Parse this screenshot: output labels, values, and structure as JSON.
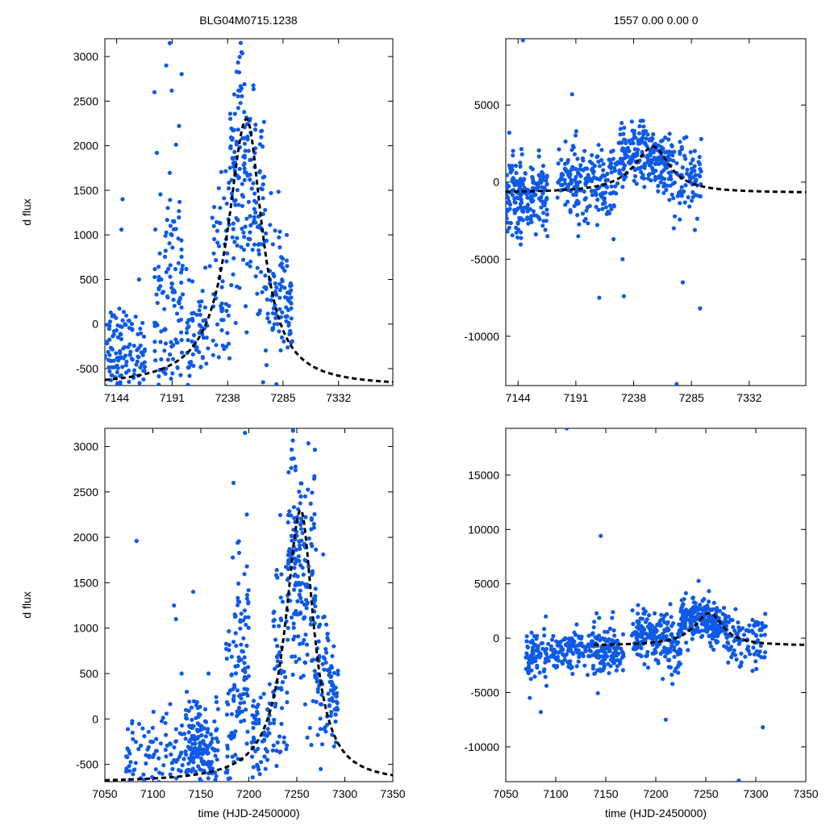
{
  "figure": {
    "title_left": "BLG04M0715.1238",
    "title_right": "1557  0.00  0.00  0",
    "colors": {
      "points": "#0f5ae6",
      "model": "#000000",
      "frame": "#000000"
    }
  },
  "chart_data": [
    {
      "id": "top-left",
      "type": "scatter",
      "ylabel": "d flux",
      "xlabel": "",
      "xlim": [
        7134,
        7378
      ],
      "ylim": [
        -690,
        3200
      ],
      "xticks": [
        7144,
        7191,
        7238,
        7285,
        7332
      ],
      "yticks": [
        -500,
        0,
        500,
        1000,
        1500,
        2000,
        2500,
        3000
      ],
      "model": {
        "t0": 7254,
        "peak": 2300,
        "base": -700,
        "tE_rise": 19,
        "tE_fall": 16
      },
      "clusters": [
        {
          "t_start": 7134,
          "t_end": 7150,
          "n": 70,
          "mean": -280,
          "sd": 250
        },
        {
          "t_start": 7150,
          "t_end": 7168,
          "n": 55,
          "mean": -330,
          "sd": 220
        },
        {
          "t_start": 7176,
          "t_end": 7188,
          "n": 55,
          "mean": 150,
          "sd": 600
        },
        {
          "t_start": 7188,
          "t_end": 7200,
          "n": 70,
          "mean": 500,
          "sd": 800
        },
        {
          "t_start": 7203,
          "t_end": 7222,
          "n": 60,
          "mean": -200,
          "sd": 300
        },
        {
          "t_start": 7225,
          "t_end": 7240,
          "n": 60,
          "mean": 500,
          "sd": 700
        },
        {
          "t_start": 7240,
          "t_end": 7255,
          "n": 110,
          "mean": 1700,
          "sd": 700
        },
        {
          "t_start": 7255,
          "t_end": 7270,
          "n": 80,
          "mean": 1200,
          "sd": 700
        },
        {
          "t_start": 7270,
          "t_end": 7283,
          "n": 50,
          "mean": 400,
          "sd": 450
        },
        {
          "t_start": 7283,
          "t_end": 7293,
          "n": 45,
          "mean": 250,
          "sd": 300
        }
      ],
      "outliers": [
        {
          "t": 7149,
          "flux": 1400
        },
        {
          "t": 7148,
          "flux": 1060
        },
        {
          "t": 7176,
          "flux": 2600
        },
        {
          "t": 7186,
          "flux": 2900
        },
        {
          "t": 7189,
          "flux": 3150
        },
        {
          "t": 7178,
          "flux": 1920
        },
        {
          "t": 7163,
          "flux": 500
        },
        {
          "t": 7223,
          "flux": 650
        }
      ]
    },
    {
      "id": "top-right",
      "type": "scatter",
      "ylabel": "",
      "xlabel": "",
      "xlim": [
        7134,
        7378
      ],
      "ylim": [
        -13200,
        9300
      ],
      "xticks": [
        7144,
        7191,
        7238,
        7285,
        7332
      ],
      "yticks": [
        -10000,
        -5000,
        0,
        5000
      ],
      "model": {
        "t0": 7254,
        "peak": 2300,
        "base": -700,
        "tE_rise": 19,
        "tE_fall": 16
      },
      "clusters": [
        {
          "t_start": 7134,
          "t_end": 7150,
          "n": 110,
          "mean": -900,
          "sd": 1300
        },
        {
          "t_start": 7150,
          "t_end": 7168,
          "n": 90,
          "mean": -1000,
          "sd": 1200
        },
        {
          "t_start": 7176,
          "t_end": 7200,
          "n": 100,
          "mean": 200,
          "sd": 1300
        },
        {
          "t_start": 7200,
          "t_end": 7225,
          "n": 100,
          "mean": -300,
          "sd": 1300
        },
        {
          "t_start": 7225,
          "t_end": 7255,
          "n": 150,
          "mean": 1700,
          "sd": 1000
        },
        {
          "t_start": 7255,
          "t_end": 7270,
          "n": 80,
          "mean": 1200,
          "sd": 900
        },
        {
          "t_start": 7270,
          "t_end": 7293,
          "n": 80,
          "mean": 0,
          "sd": 1300
        }
      ],
      "outliers": [
        {
          "t": 7148,
          "flux": 9200
        },
        {
          "t": 7188,
          "flux": 5700
        },
        {
          "t": 7210,
          "flux": -7500
        },
        {
          "t": 7230,
          "flux": -7400
        },
        {
          "t": 7273,
          "flux": -13100
        },
        {
          "t": 7292,
          "flux": -8200
        },
        {
          "t": 7278,
          "flux": -6500
        },
        {
          "t": 7229,
          "flux": -5000
        }
      ]
    },
    {
      "id": "bottom-left",
      "type": "scatter",
      "ylabel": "d flux",
      "xlabel": "time (HJD-2450000)",
      "xlim": [
        7050,
        7350
      ],
      "ylim": [
        -690,
        3200
      ],
      "xticks": [
        7050,
        7100,
        7150,
        7200,
        7250,
        7300,
        7350
      ],
      "yticks": [
        -500,
        0,
        500,
        1000,
        1500,
        2000,
        2500,
        3000
      ],
      "model": {
        "t0": 7254,
        "peak": 2300,
        "base": -700,
        "tE_rise": 19,
        "tE_fall": 16
      },
      "clusters": [
        {
          "t_start": 7072,
          "t_end": 7100,
          "n": 50,
          "mean": -450,
          "sd": 250
        },
        {
          "t_start": 7100,
          "t_end": 7134,
          "n": 60,
          "mean": -420,
          "sd": 280
        },
        {
          "t_start": 7134,
          "t_end": 7150,
          "n": 90,
          "mean": -280,
          "sd": 250
        },
        {
          "t_start": 7150,
          "t_end": 7168,
          "n": 70,
          "mean": -330,
          "sd": 220
        },
        {
          "t_start": 7176,
          "t_end": 7188,
          "n": 55,
          "mean": 150,
          "sd": 600
        },
        {
          "t_start": 7188,
          "t_end": 7200,
          "n": 70,
          "mean": 500,
          "sd": 800
        },
        {
          "t_start": 7203,
          "t_end": 7222,
          "n": 60,
          "mean": -200,
          "sd": 300
        },
        {
          "t_start": 7225,
          "t_end": 7240,
          "n": 60,
          "mean": 500,
          "sd": 700
        },
        {
          "t_start": 7240,
          "t_end": 7255,
          "n": 110,
          "mean": 1700,
          "sd": 700
        },
        {
          "t_start": 7255,
          "t_end": 7270,
          "n": 80,
          "mean": 1200,
          "sd": 700
        },
        {
          "t_start": 7270,
          "t_end": 7283,
          "n": 50,
          "mean": 400,
          "sd": 450
        },
        {
          "t_start": 7283,
          "t_end": 7293,
          "n": 45,
          "mean": 250,
          "sd": 300
        }
      ],
      "outliers": [
        {
          "t": 7083,
          "flux": 1960
        },
        {
          "t": 7122,
          "flux": 1250
        },
        {
          "t": 7124,
          "flux": 1100
        },
        {
          "t": 7142,
          "flux": 1400
        },
        {
          "t": 7130,
          "flux": 500
        },
        {
          "t": 7158,
          "flux": 500
        },
        {
          "t": 7196,
          "flux": 3150
        },
        {
          "t": 7184,
          "flux": 2600
        }
      ]
    },
    {
      "id": "bottom-right",
      "type": "scatter",
      "ylabel": "",
      "xlabel": "time (HJD-2450000)",
      "xlim": [
        7050,
        7350
      ],
      "ylim": [
        -13200,
        19300
      ],
      "xticks": [
        7050,
        7100,
        7150,
        7200,
        7250,
        7300,
        7350
      ],
      "yticks": [
        -10000,
        -5000,
        0,
        5000,
        10000,
        15000
      ],
      "model": {
        "t0": 7254,
        "peak": 2300,
        "base": -700,
        "tE_rise": 19,
        "tE_fall": 16
      },
      "model_start": 7138,
      "clusters": [
        {
          "t_start": 7070,
          "t_end": 7100,
          "n": 90,
          "mean": -1400,
          "sd": 900
        },
        {
          "t_start": 7100,
          "t_end": 7134,
          "n": 100,
          "mean": -1000,
          "sd": 900
        },
        {
          "t_start": 7134,
          "t_end": 7168,
          "n": 140,
          "mean": -1000,
          "sd": 1200
        },
        {
          "t_start": 7176,
          "t_end": 7200,
          "n": 100,
          "mean": 300,
          "sd": 1300
        },
        {
          "t_start": 7200,
          "t_end": 7225,
          "n": 100,
          "mean": -300,
          "sd": 1300
        },
        {
          "t_start": 7225,
          "t_end": 7255,
          "n": 150,
          "mean": 1700,
          "sd": 1000
        },
        {
          "t_start": 7255,
          "t_end": 7270,
          "n": 80,
          "mean": 1200,
          "sd": 900
        },
        {
          "t_start": 7270,
          "t_end": 7310,
          "n": 100,
          "mean": 0,
          "sd": 1300
        }
      ],
      "outliers": [
        {
          "t": 7111,
          "flux": 19300
        },
        {
          "t": 7145,
          "flux": 9400
        },
        {
          "t": 7085,
          "flux": -6800
        },
        {
          "t": 7283,
          "flux": -13100
        },
        {
          "t": 7307,
          "flux": -8200
        },
        {
          "t": 7210,
          "flux": -7500
        },
        {
          "t": 7074,
          "flux": -5500
        },
        {
          "t": 7090,
          "flux": 2000
        }
      ]
    }
  ]
}
